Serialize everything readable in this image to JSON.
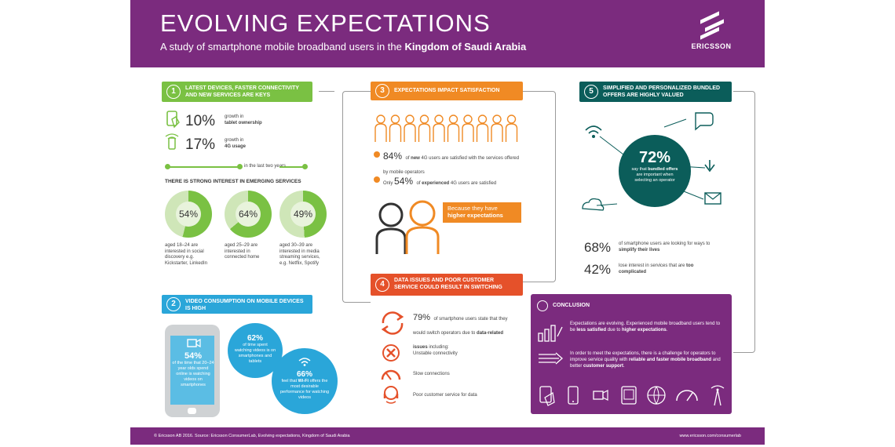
{
  "header": {
    "title": "EVOLVING EXPECTATIONS",
    "subtitle_prefix": "A study of smartphone mobile broadband users in the ",
    "subtitle_bold": "Kingdom of Saudi Arabia",
    "logo_text": "ERICSSON"
  },
  "section1": {
    "num": "1",
    "title": "LATEST DEVICES, FASTER CONNECTIVITY AND NEW SERVICES ARE KEYS",
    "stat1_value": "10%",
    "stat1_label_a": "growth in",
    "stat1_label_b": "tablet ownership",
    "stat2_value": "17%",
    "stat2_label_a": "growth in",
    "stat2_label_b": "4G usage",
    "timeline_label": "in the last two years",
    "interest_heading": "THERE IS STRONG INTEREST IN EMERGING SERVICES",
    "donuts": [
      {
        "value": "54%",
        "percent": 54,
        "caption": "aged 18–24 are interested in social discovery e.g. Kickstarter, LinkedIn"
      },
      {
        "value": "64%",
        "percent": 64,
        "caption": "aged 25–29 are interested in connected home"
      },
      {
        "value": "49%",
        "percent": 49,
        "caption": "aged 30–39 are interested in media streaming services, e.g. Netflix, Spotify"
      }
    ]
  },
  "section2": {
    "num": "2",
    "title": "VIDEO CONSUMPTION ON MOBILE DEVICES IS HIGH",
    "phone_value": "54%",
    "phone_text": "of the time that 20–24 year olds spend online is watching videos on smartphones",
    "bubble1_value": "62%",
    "bubble1_text": "of time spent watching videos is on smartphones and tablets",
    "bubble2_value": "66%",
    "bubble2_text_a": "feel that ",
    "bubble2_bold": "Wi-Fi",
    "bubble2_text_b": " offers the most desirable performance for watching videos"
  },
  "section3": {
    "num": "3",
    "title": "EXPECTATIONS IMPACT SATISFACTION",
    "stat1_value": "84%",
    "stat1_text_a": "of ",
    "stat1_bold": "new",
    "stat1_text_b": " 4G users are satisfied with the services offered by mobile operators",
    "stat2_prefix": "Only ",
    "stat2_value": "54%",
    "stat2_text_a": " of ",
    "stat2_bold": "experienced",
    "stat2_text_b": " 4G users are satisfied",
    "callout_a": "Because they have",
    "callout_b": "higher expectations"
  },
  "section4": {
    "num": "4",
    "title": "DATA ISSUES AND POOR CUSTOMER SERVICE COULD RESULT IN SWITCHING",
    "stat_value": "79%",
    "stat_text_a": "of smartphone users state that they would switch operators due to ",
    "stat_bold": "data-related issues",
    "stat_text_b": " including:",
    "issues": [
      "Unstable connectivity",
      "Slow connections",
      "Poor customer service for data"
    ]
  },
  "section5": {
    "num": "5",
    "title": "SIMPLIFIED AND PERSONALIZED BUNDLED OFFERS ARE HIGHLY VALUED",
    "circle_value": "72%",
    "circle_text_a": "say that ",
    "circle_bold": "bundled offers",
    "circle_text_b": " are important when selecting an operator",
    "stat1_value": "68%",
    "stat1_text_a": "of smartphone users are looking for ways to ",
    "stat1_bold": "simplify their lives",
    "stat2_value": "42%",
    "stat2_text_a": "lose interest in services that are ",
    "stat2_bold": "too complicated"
  },
  "conclusion": {
    "title": "CONCLUSION",
    "p1_a": "Expectations are evolving. Experienced mobile broadband users tend to be ",
    "p1_b": "less satisfied",
    "p1_c": " due to ",
    "p1_d": "higher expectations",
    "p1_e": ".",
    "p2_a": "In order to meet the expectations, there is a challenge for operators to improve service quality with ",
    "p2_b": "reliable and faster mobile broadband",
    "p2_c": " and better ",
    "p2_d": "customer support",
    "p2_e": "."
  },
  "footer": {
    "left": "© Ericsson AB 2016. Source: Ericsson ConsumerLab, Evolving expectations, Kingdom of Saudi Arabia",
    "right": "www.ericsson.com/consumerlab"
  },
  "colors": {
    "purple": "#7b2b7e",
    "green": "#7ac143",
    "blue": "#2aa6d9",
    "orange": "#f08a24",
    "red": "#e5512a",
    "teal": "#0b5d5a"
  }
}
